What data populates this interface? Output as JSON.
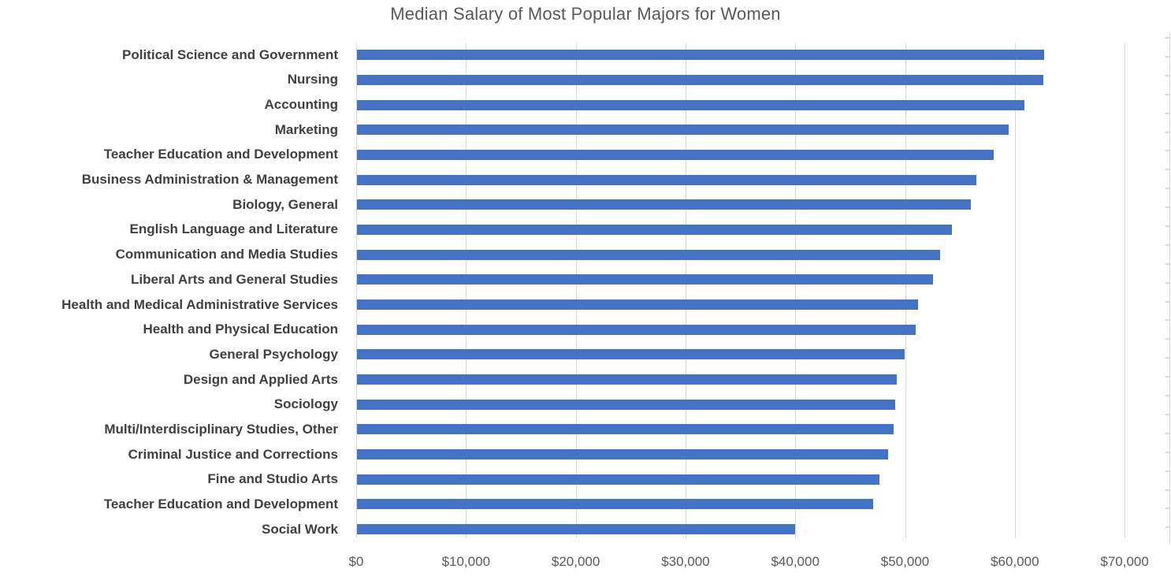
{
  "title": "Median Salary of Most Popular Majors for Women",
  "chart_data": {
    "type": "bar",
    "orientation": "horizontal",
    "title": "Median Salary of Most Popular Majors for Women",
    "categories": [
      "Political Science and Government",
      "Nursing",
      "Accounting",
      "Marketing",
      "Teacher Education and Development",
      "Business Administration & Management",
      "Biology, General",
      "English Language and Literature",
      "Communication and Media Studies",
      "Liberal Arts and General Studies",
      "Health and Medical Administrative Services",
      "Health and Physical Education",
      "General Psychology",
      "Design and Applied Arts",
      "Sociology",
      "Multi/Interdisciplinary Studies, Other",
      "Criminal Justice and Corrections",
      "Fine and Studio Arts",
      "Teacher Education and Development",
      "Social Work"
    ],
    "values": [
      62600,
      62500,
      60800,
      59400,
      58000,
      56400,
      55900,
      54200,
      53100,
      52500,
      51100,
      50900,
      49900,
      49200,
      49000,
      48900,
      48400,
      47600,
      47000,
      39900
    ],
    "series_name": "Median Salary",
    "x_axis": {
      "tick_labels": [
        "$0",
        "$10,000",
        "$20,000",
        "$30,000",
        "$40,000",
        "$50,000",
        "$60,000",
        "$70,000"
      ],
      "tick_values": [
        0,
        10000,
        20000,
        30000,
        40000,
        50000,
        60000,
        70000
      ],
      "min": 0,
      "max": 74000,
      "grid": true
    },
    "y_axis": {
      "labels_bold": true,
      "order": "top-to-bottom"
    },
    "legend": "none",
    "colors": {
      "bar": "#4472C4",
      "gridline": "#D9D9D9",
      "title_text": "#595959",
      "axis_text": "#595959",
      "category_text": "#404040",
      "background": "#FFFFFF"
    }
  }
}
